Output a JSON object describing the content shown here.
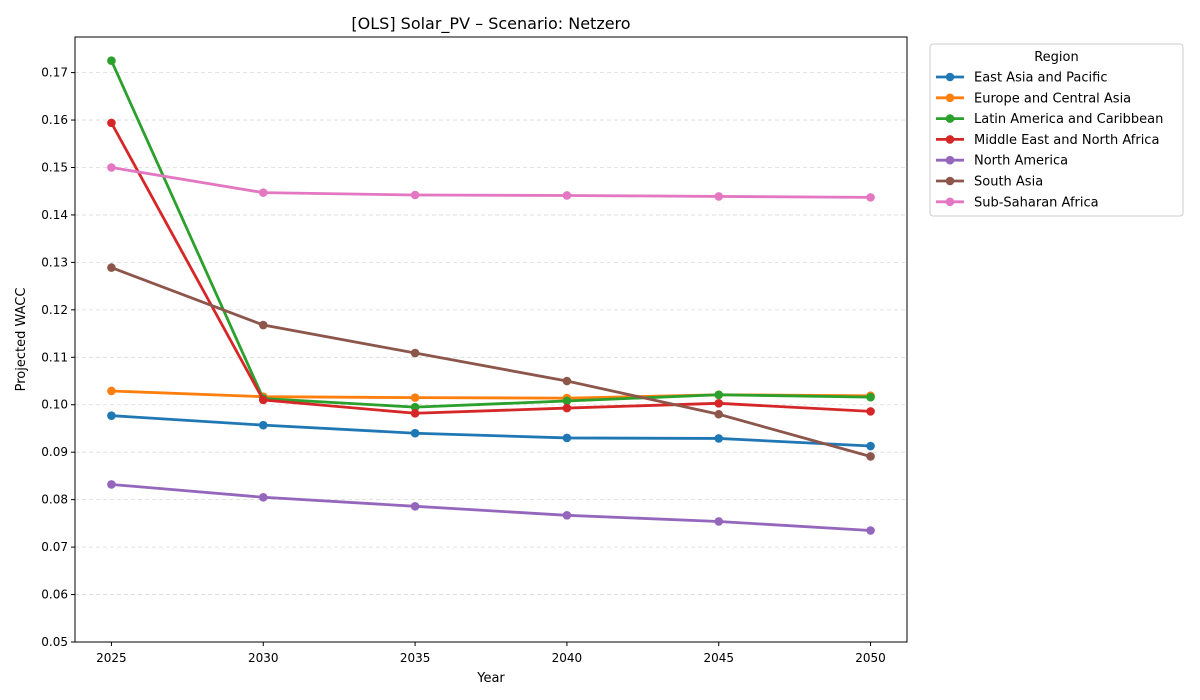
{
  "chart_data": {
    "type": "line",
    "title": "[OLS] Solar_PV – Scenario: Netzero",
    "xlabel": "Year",
    "ylabel": "Projected WACC",
    "x": [
      2025,
      2030,
      2035,
      2040,
      2045,
      2050
    ],
    "x_ticks": [
      "2025",
      "2030",
      "2035",
      "2040",
      "2045",
      "2050"
    ],
    "xlim": [
      2023.8,
      2051.2
    ],
    "ylim": [
      0.05,
      0.1775
    ],
    "y_ticks": [
      "0.05",
      "0.06",
      "0.07",
      "0.08",
      "0.09",
      "0.10",
      "0.11",
      "0.12",
      "0.13",
      "0.14",
      "0.15",
      "0.16",
      "0.17"
    ],
    "grid": "horizontal dashed",
    "legend": {
      "title": "Region",
      "placement": "outside-right-top"
    },
    "series": [
      {
        "name": "East Asia and Pacific",
        "color": "#1f77b4",
        "values": [
          0.0977,
          0.0957,
          0.094,
          0.093,
          0.0929,
          0.0913
        ]
      },
      {
        "name": "Europe and Central Asia",
        "color": "#ff7f0e",
        "values": [
          0.1029,
          0.1017,
          0.1015,
          0.1014,
          0.1021,
          0.1019
        ]
      },
      {
        "name": "Latin America and Caribbean",
        "color": "#2ca02c",
        "values": [
          0.1725,
          0.1013,
          0.0995,
          0.1008,
          0.1021,
          0.1016
        ]
      },
      {
        "name": "Middle East and North Africa",
        "color": "#d62728",
        "values": [
          0.1594,
          0.101,
          0.0982,
          0.0993,
          0.1003,
          0.0986
        ]
      },
      {
        "name": "North America",
        "color": "#9467bd",
        "values": [
          0.0832,
          0.0805,
          0.0786,
          0.0767,
          0.0754,
          0.0735
        ]
      },
      {
        "name": "South Asia",
        "color": "#8c564b",
        "values": [
          0.1289,
          0.1168,
          0.1109,
          0.105,
          0.098,
          0.0891
        ]
      },
      {
        "name": "Sub-Saharan Africa",
        "color": "#e377c2",
        "values": [
          0.15,
          0.1447,
          0.1442,
          0.1441,
          0.1439,
          0.1437
        ]
      }
    ]
  }
}
